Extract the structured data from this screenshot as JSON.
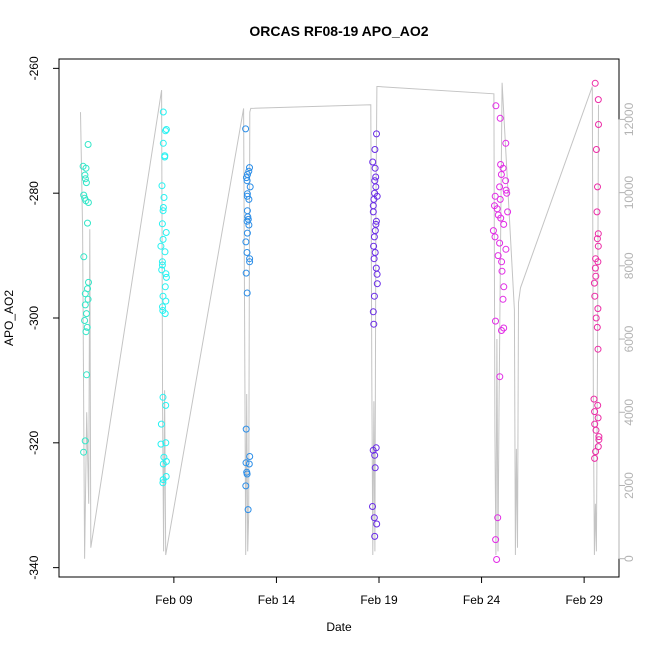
{
  "chart_data": {
    "type": "scatter",
    "title": "ORCAS RF08-19 APO_AO2",
    "xlabel": "Date",
    "ylabel": "APO_AO2",
    "x_ticks": [
      "Feb 09",
      "Feb 14",
      "Feb 19",
      "Feb 24",
      "Feb 29"
    ],
    "x_tick_days": [
      9,
      14,
      19,
      24,
      29
    ],
    "xlim": [
      3.4,
      30.7
    ],
    "ylim": [
      -341.5,
      -258.5
    ],
    "y_ticks": [
      -340,
      -320,
      -300,
      -280,
      -260
    ],
    "y2lim": [
      -500,
      13650
    ],
    "y2_ticks": [
      0,
      2000,
      4000,
      6000,
      8000,
      10000,
      12000
    ],
    "y2_color": "#b3b3b3",
    "series": [
      {
        "color": "#33e6c8",
        "x_center": 4.7,
        "x_spread": 0.14,
        "values": [
          -272.2,
          -275.7,
          -276.0,
          -277.1,
          -277.7,
          -278.3,
          -280.3,
          -280.8,
          -281.2,
          -281.5,
          -284.8,
          -290.2,
          -294.3,
          -295.3,
          -296.1,
          -297.0,
          -297.9,
          -299.3,
          -300.4,
          -301.5,
          -302.2,
          -309.1,
          -319.7,
          -321.5
        ]
      },
      {
        "color": "#27f2f2",
        "x_center": 8.5,
        "x_spread": 0.14,
        "values": [
          -267.0,
          -269.8,
          -270.0,
          -272.0,
          -274.0,
          -274.2,
          -278.8,
          -280.7,
          -282.3,
          -282.8,
          -284.9,
          -286.3,
          -287.4,
          -288.5,
          -289.4,
          -291.0,
          -291.5,
          -292.3,
          -292.9,
          -293.5,
          -295.0,
          -296.5,
          -297.3,
          -298.2,
          -298.8,
          -299.3,
          -312.7,
          -314.0,
          -317.0,
          -320.0,
          -320.2,
          -322.3,
          -323.0,
          -323.4,
          -325.4,
          -325.9,
          -326.4
        ]
      },
      {
        "color": "#2c8ee8",
        "x_center": 12.6,
        "x_spread": 0.12,
        "values": [
          -269.7,
          -275.9,
          -276.5,
          -277.0,
          -277.5,
          -278.0,
          -279.0,
          -280.1,
          -280.5,
          -281.0,
          -282.8,
          -283.8,
          -284.2,
          -284.5,
          -285.1,
          -286.4,
          -287.8,
          -289.5,
          -290.5,
          -291.0,
          -292.8,
          -296.0,
          -317.8,
          -322.2,
          -323.2,
          -323.4,
          -324.7,
          -325.0,
          -326.9,
          -330.7
        ]
      },
      {
        "color": "#6a2ce8",
        "x_center": 18.8,
        "x_spread": 0.12,
        "values": [
          -270.5,
          -273.0,
          -275.0,
          -276.0,
          -277.4,
          -278.0,
          -279.0,
          -280.0,
          -280.5,
          -281.0,
          -282.0,
          -283.0,
          -284.5,
          -285.0,
          -286.0,
          -287.0,
          -288.5,
          -289.5,
          -290.5,
          -292.0,
          -293.0,
          -294.5,
          -296.5,
          -299.0,
          -301.0,
          -320.8,
          -321.2,
          -322.0,
          -324.0,
          -330.2,
          -332.0,
          -333.0,
          -335.0
        ]
      },
      {
        "color": "#e22ce6",
        "x_center": 24.9,
        "x_spread": 0.38,
        "values": [
          -266.0,
          -268.0,
          -272.0,
          -275.4,
          -276.0,
          -277.0,
          -278.0,
          -279.0,
          -279.5,
          -280.0,
          -280.5,
          -281.0,
          -282.0,
          -282.5,
          -283.0,
          -283.5,
          -284.0,
          -285.0,
          -286.0,
          -287.0,
          -288.0,
          -289.0,
          -290.0,
          -291.0,
          -292.5,
          -295.0,
          -297.0,
          -300.5,
          -301.6,
          -302.0,
          -309.4,
          -332.0,
          -335.5,
          -338.7
        ]
      },
      {
        "color": "#ec2ca6",
        "x_center": 29.6,
        "x_spread": 0.12,
        "values": [
          -262.4,
          -265.0,
          -269.0,
          -273.0,
          -279.0,
          -283.0,
          -286.5,
          -287.3,
          -288.5,
          -290.5,
          -291.0,
          -292.0,
          -293.3,
          -294.4,
          -296.5,
          -298.5,
          -300.0,
          -301.5,
          -305.0,
          -313.0,
          -314.0,
          -315.0,
          -316.0,
          -317.0,
          -318.0,
          -319.0,
          -319.5,
          -320.6,
          -321.4,
          -322.5
        ]
      }
    ],
    "altitude_series": {
      "color": "#c4c4c4",
      "x": [
        4.45,
        4.55,
        4.65,
        4.75,
        4.85,
        4.9,
        4.95,
        8.4,
        8.45,
        8.5,
        8.55,
        8.6,
        12.4,
        12.45,
        12.5,
        12.55,
        12.6,
        12.65,
        12.7,
        12.75,
        18.6,
        18.65,
        18.7,
        18.75,
        18.8,
        18.85,
        18.9,
        18.95,
        24.6,
        24.65,
        24.7,
        24.75,
        24.8,
        24.85,
        24.9,
        25.0,
        25.6,
        25.65,
        25.7,
        25.75,
        25.8,
        25.9,
        29.4,
        29.45,
        29.5,
        29.55,
        29.6,
        29.65,
        29.7
      ],
      "y": [
        12200,
        9000,
        0,
        4000,
        1500,
        9000,
        300,
        12800,
        4000,
        200,
        4600,
        100,
        12300,
        6500,
        100,
        4500,
        200,
        1200,
        12200,
        12300,
        12400,
        5000,
        100,
        4300,
        200,
        9500,
        12900,
        12900,
        12700,
        3500,
        100,
        6000,
        200,
        4000,
        7000,
        13000,
        6800,
        100,
        3000,
        300,
        7000,
        7400,
        12900,
        4000,
        100,
        1500,
        200,
        5500,
        12400
      ]
    }
  }
}
